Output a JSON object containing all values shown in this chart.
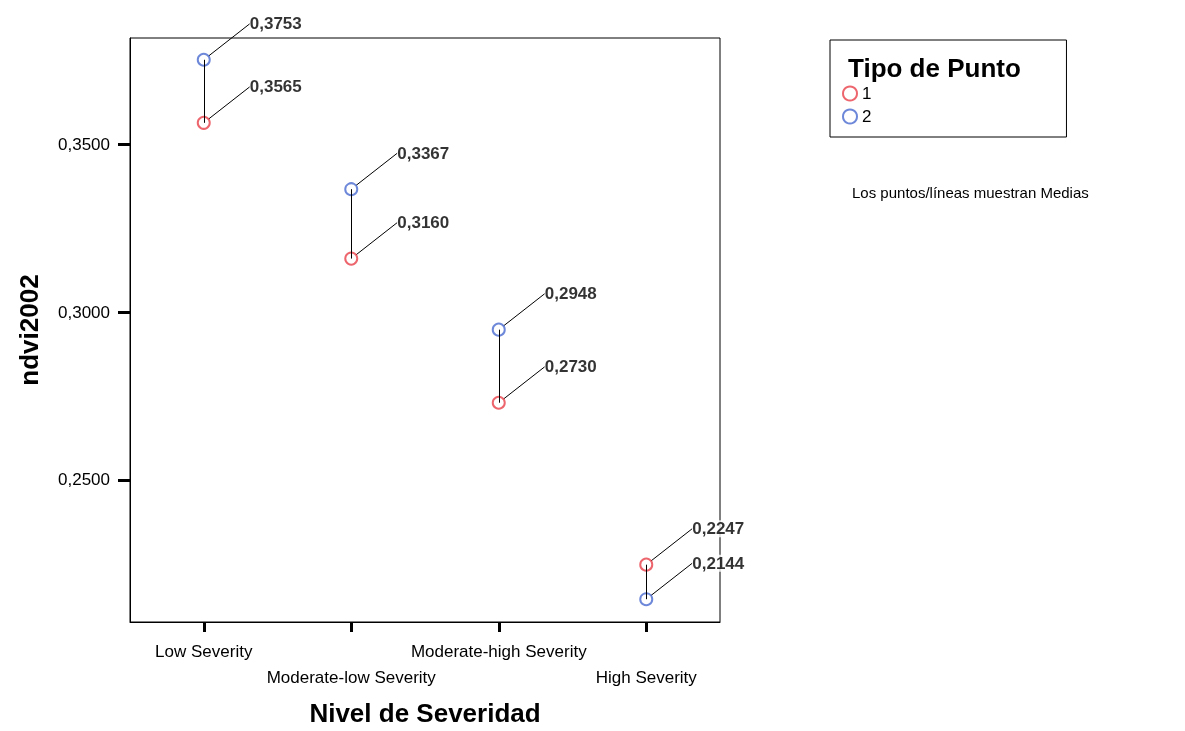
{
  "chart_data": {
    "type": "scatter",
    "xlabel": "Nivel de Severidad",
    "ylabel": "ndvi2002",
    "legend_title": "Tipo de Punto",
    "categories": [
      "Low Severity",
      "Moderate-low Severity",
      "Moderate-high Severity",
      "High Severity"
    ],
    "series": [
      {
        "name": "1",
        "color": "#e8404a",
        "values": [
          0.3565,
          0.316,
          0.273,
          0.2247
        ],
        "value_labels": [
          "0,3565",
          "0,3160",
          "0,2730",
          "0,2247"
        ]
      },
      {
        "name": "2",
        "color": "#4a6ad0",
        "values": [
          0.3753,
          0.3367,
          0.2948,
          0.2144
        ],
        "value_labels": [
          "0,3753",
          "0,3367",
          "0,2948",
          "0,2144"
        ]
      }
    ],
    "ylim": [
      0.2076,
      0.3818
    ],
    "yticks": [
      {
        "value": 0.25,
        "label": "0,2500"
      },
      {
        "value": 0.3,
        "label": "0,3000"
      },
      {
        "value": 0.35,
        "label": "0,3500"
      }
    ],
    "annotations": [
      "Los puntos/líneas muestran Medias"
    ],
    "marker": "circle",
    "legend": "top right",
    "grid": false
  }
}
